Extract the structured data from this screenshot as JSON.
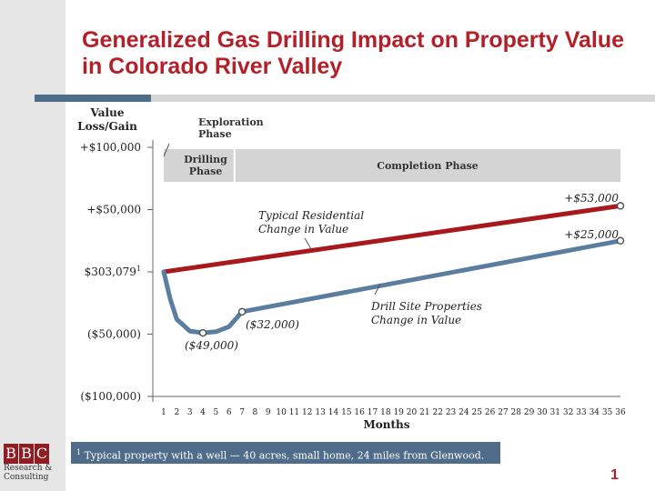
{
  "title": "Generalized Gas Drilling Impact on Property Value in Colorado River Valley",
  "colors": {
    "title": "#b3202a",
    "residential": "#a8191e",
    "drill_site": "#5b7ea0",
    "phase_band": "#d4d4d4",
    "footnote_bg": "#4f6d8a"
  },
  "chart_data": {
    "type": "line",
    "ylabel_lines": [
      "Value",
      "Loss/Gain"
    ],
    "xlabel": "Months",
    "x": [
      1,
      2,
      3,
      4,
      5,
      6,
      7,
      8,
      9,
      10,
      11,
      12,
      13,
      14,
      15,
      16,
      17,
      18,
      19,
      20,
      21,
      22,
      23,
      24,
      25,
      26,
      27,
      28,
      29,
      30,
      31,
      32,
      33,
      34,
      35,
      36
    ],
    "ylim": [
      -100000,
      100000
    ],
    "yticks": [
      100000,
      50000,
      0,
      -50000,
      -100000
    ],
    "ytick_labels": [
      "+$100,000",
      "+$50,000",
      "$303,079",
      "($50,000)",
      "($100,000)"
    ],
    "ytick_superscript": "1",
    "series": [
      {
        "key": "residential",
        "points": [
          [
            1,
            0
          ],
          [
            36,
            53000
          ]
        ],
        "markers": [
          [
            36,
            53000
          ]
        ]
      },
      {
        "key": "drill_site",
        "points": [
          [
            1,
            0
          ],
          [
            1.5,
            -22000
          ],
          [
            2,
            -38000
          ],
          [
            3,
            -47500
          ],
          [
            4,
            -49000
          ],
          [
            5,
            -48000
          ],
          [
            6,
            -44000
          ],
          [
            7,
            -32000
          ],
          [
            36,
            25000
          ]
        ],
        "markers": [
          [
            4,
            -49000
          ],
          [
            7,
            -32000
          ],
          [
            36,
            25000
          ]
        ]
      }
    ],
    "phases": [
      {
        "label": "Exploration Phase",
        "start": 1,
        "end": 1
      },
      {
        "label": "Drilling Phase",
        "start": 1,
        "end": 6
      },
      {
        "label": "Completion Phase",
        "start": 6,
        "end": 36
      }
    ],
    "annotations": [
      {
        "key": "typical",
        "lines": [
          "Typical Residential",
          "Change in Value"
        ]
      },
      {
        "key": "drill",
        "lines": [
          "Drill Site Properties",
          "Change in Value"
        ]
      },
      {
        "key": "v53",
        "text": "+$53,000"
      },
      {
        "key": "v25",
        "text": "+$25,000"
      },
      {
        "key": "v32",
        "text": "($32,000)"
      },
      {
        "key": "v49",
        "text": "($49,000)"
      }
    ]
  },
  "footnote": {
    "marker": "1",
    "text": "Typical property with a well — 40 acres, small home, 24 miles from Glenwood."
  },
  "logo": {
    "letters": [
      "B",
      "B",
      "C"
    ],
    "line1": "Research &",
    "line2": "Consulting"
  },
  "page_number": "1"
}
